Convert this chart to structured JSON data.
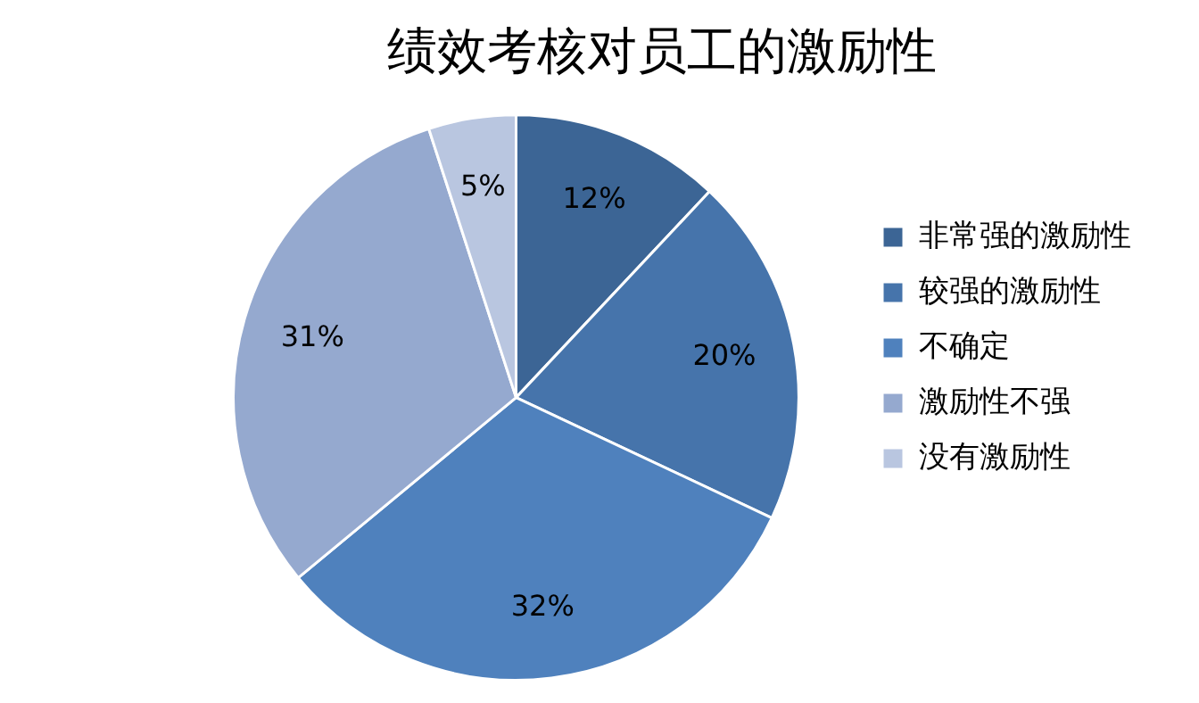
{
  "chart_data": {
    "type": "pie",
    "title": "绩效考核对员工的激励性",
    "categories": [
      "非常强的激励性",
      "较强的激励性",
      "不确定",
      "激励性不强",
      "没有激励性"
    ],
    "values": [
      12,
      20,
      32,
      31,
      5
    ],
    "value_labels": [
      "12%",
      "20%",
      "32%",
      "31%",
      "5%"
    ],
    "colors": [
      "#3c6595",
      "#4674ab",
      "#4f81bd",
      "#95a9cf",
      "#b9c6e0"
    ],
    "legend": "right"
  }
}
